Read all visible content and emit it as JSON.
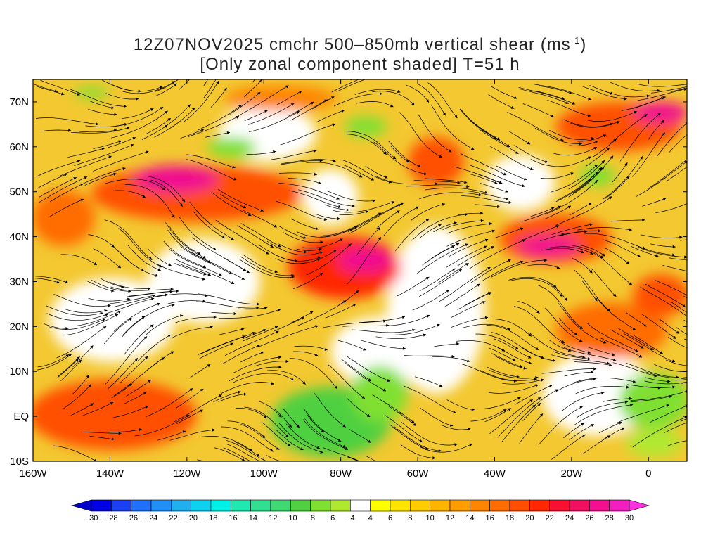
{
  "title": {
    "line1_main": "12Z07NOV2025 cmchr 500–850mb vertical shear (ms",
    "line1_sup": "-1",
    "line1_end": ")",
    "line2": "[Only zonal component shaded] T=51 h"
  },
  "map": {
    "lon_range": [
      -160,
      10
    ],
    "lat_range": [
      -10,
      75
    ],
    "lon_ticks": [
      {
        "value": -160,
        "label": "160W"
      },
      {
        "value": -140,
        "label": "140W"
      },
      {
        "value": -120,
        "label": "120W"
      },
      {
        "value": -100,
        "label": "100W"
      },
      {
        "value": -80,
        "label": "80W"
      },
      {
        "value": -60,
        "label": "60W"
      },
      {
        "value": -40,
        "label": "40W"
      },
      {
        "value": -20,
        "label": "20W"
      },
      {
        "value": 0,
        "label": "0"
      }
    ],
    "lat_ticks": [
      {
        "value": 70,
        "label": "70N"
      },
      {
        "value": 60,
        "label": "60N"
      },
      {
        "value": 50,
        "label": "50N"
      },
      {
        "value": 40,
        "label": "40N"
      },
      {
        "value": 30,
        "label": "30N"
      },
      {
        "value": 20,
        "label": "20N"
      },
      {
        "value": 10,
        "label": "10N"
      },
      {
        "value": 0,
        "label": "EQ"
      },
      {
        "value": -10,
        "label": "10S"
      }
    ]
  },
  "colorbar": {
    "labels": [
      "-30",
      "-28",
      "-26",
      "-24",
      "-22",
      "-20",
      "-18",
      "-16",
      "-14",
      "-12",
      "-10",
      "-8",
      "-6",
      "-4",
      "4",
      "6",
      "8",
      "10",
      "12",
      "14",
      "16",
      "18",
      "20",
      "22",
      "24",
      "26",
      "28",
      "30"
    ],
    "colors": [
      "#0000e0",
      "#1a40f0",
      "#2070f8",
      "#2090f8",
      "#20b0f0",
      "#10d0f0",
      "#00f0e8",
      "#20e8b0",
      "#30e090",
      "#40d870",
      "#50d040",
      "#80e030",
      "#b0e830",
      "#ffffff",
      "#ffff00",
      "#ffe400",
      "#ffcc00",
      "#ffb400",
      "#ff9c00",
      "#ff8400",
      "#ff6c00",
      "#ff5000",
      "#ff2800",
      "#f81030",
      "#f01060",
      "#f01090",
      "#f020c0"
    ],
    "low_color": "#0000c8",
    "high_color": "#ff30e0"
  }
}
